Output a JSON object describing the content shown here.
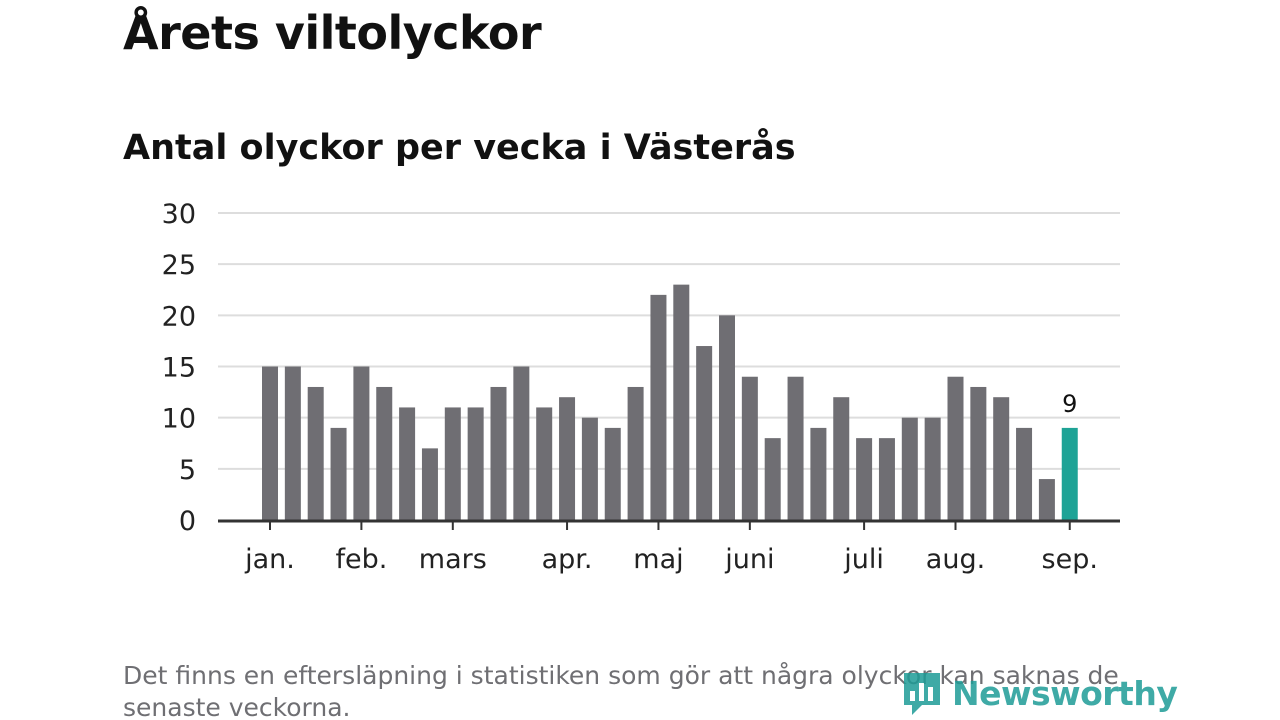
{
  "header": {
    "title": "Årets viltolyckor",
    "subtitle": "Antal olyckor per vecka i Västerås"
  },
  "footer": {
    "note": "Det finns en eftersläpning i statistiken som gör att några olyckor kan saknas de senaste veckorna.",
    "brand": "Newsworthy"
  },
  "colors": {
    "bar": "#6f6e73",
    "highlight": "#1ea396",
    "grid": "#dddddd",
    "axis": "#333333",
    "brand": "#1e9c97"
  },
  "chart_data": {
    "type": "bar",
    "title": "Antal olyckor per vecka i Västerås",
    "xlabel": "",
    "ylabel": "",
    "ylim": [
      0,
      30
    ],
    "yticks": [
      0,
      5,
      10,
      15,
      20,
      25,
      30
    ],
    "grid": true,
    "values": [
      15,
      15,
      13,
      9,
      15,
      13,
      11,
      7,
      11,
      11,
      13,
      15,
      11,
      12,
      10,
      9,
      13,
      22,
      23,
      17,
      20,
      14,
      8,
      14,
      9,
      12,
      8,
      8,
      10,
      10,
      14,
      13,
      12,
      9,
      4,
      9
    ],
    "highlight_index": 35,
    "highlight_label": "9",
    "month_labels": [
      {
        "label": "jan.",
        "week_index": 0
      },
      {
        "label": "feb.",
        "week_index": 4
      },
      {
        "label": "mars",
        "week_index": 8
      },
      {
        "label": "apr.",
        "week_index": 13
      },
      {
        "label": "maj",
        "week_index": 17
      },
      {
        "label": "juni",
        "week_index": 21
      },
      {
        "label": "juli",
        "week_index": 26
      },
      {
        "label": "aug.",
        "week_index": 30
      },
      {
        "label": "sep.",
        "week_index": 35
      }
    ]
  }
}
